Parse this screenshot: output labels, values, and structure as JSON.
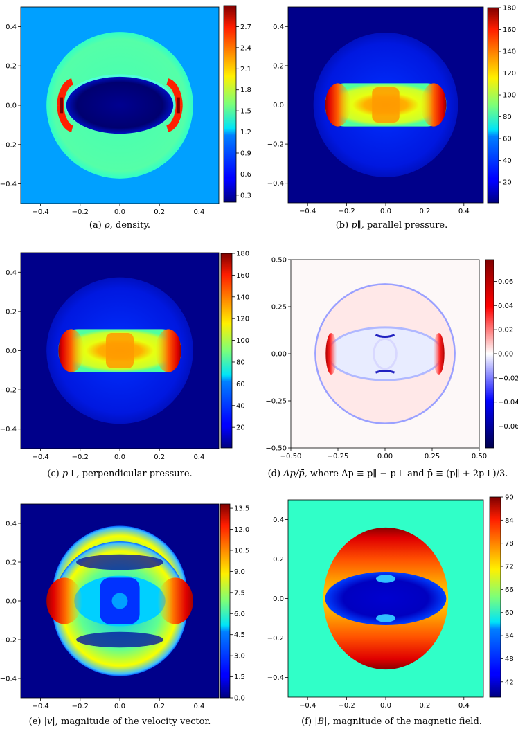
{
  "panels": [
    {
      "id": "a",
      "caption": {
        "label": "(a)",
        "symbol": "ρ,",
        "text": "density."
      },
      "chart_data": {
        "type": "heatmap",
        "x_ticks": [
          -0.4,
          -0.2,
          0.0,
          0.2,
          0.4
        ],
        "y_ticks": [
          0.4,
          0.2,
          0.0,
          -0.2,
          -0.4
        ],
        "x_tick_labels": [
          "−0.4",
          "−0.2",
          "0.0",
          "0.2",
          "0.4"
        ],
        "y_tick_labels": [
          "0.4",
          "0.2",
          "0.0",
          "−0.2",
          "−0.4"
        ],
        "xlim": [
          -0.5,
          0.5
        ],
        "ylim": [
          -0.5,
          0.5
        ],
        "colormap": "jet",
        "colorbar_ticks": [
          0.3,
          0.6,
          0.9,
          1.2,
          1.5,
          1.8,
          2.1,
          2.4,
          2.7
        ],
        "colorbar_tick_labels": [
          "0.3",
          "0.6",
          "0.9",
          "1.2",
          "1.5",
          "1.8",
          "2.1",
          "2.4",
          "2.7"
        ],
        "colorbar_range": [
          0.2,
          3.0
        ],
        "background_value": 1.0,
        "features": {
          "outer_shell_radius": 0.37,
          "inner_cavity_value": 0.25,
          "shell_value": 1.5,
          "peak_value": 3.0
        }
      }
    },
    {
      "id": "b",
      "caption": {
        "label": "(b)",
        "symbol": "p∥,",
        "text": "parallel pressure."
      },
      "chart_data": {
        "type": "heatmap",
        "x_ticks": [
          -0.4,
          -0.2,
          0.0,
          0.2,
          0.4
        ],
        "y_ticks": [
          0.4,
          0.2,
          0.0,
          -0.2,
          -0.4
        ],
        "x_tick_labels": [
          "−0.4",
          "−0.2",
          "0.0",
          "0.2",
          "0.4"
        ],
        "y_tick_labels": [
          "0.4",
          "0.2",
          "0.0",
          "−0.2",
          "−0.4"
        ],
        "xlim": [
          -0.5,
          0.5
        ],
        "ylim": [
          -0.5,
          0.5
        ],
        "colormap": "jet",
        "colorbar_ticks": [
          20,
          40,
          60,
          80,
          100,
          120,
          140,
          160,
          180
        ],
        "colorbar_tick_labels": [
          "20",
          "40",
          "60",
          "80",
          "100",
          "120",
          "140",
          "160",
          "180"
        ],
        "colorbar_range": [
          1,
          180
        ],
        "background_value": 1,
        "features": {
          "outer_shell_radius": 0.37,
          "core_value": 135,
          "edge_peak_value": 175
        }
      }
    },
    {
      "id": "c",
      "caption": {
        "label": "(c)",
        "symbol": "p⊥,",
        "text": "perpendicular pressure."
      },
      "chart_data": {
        "type": "heatmap",
        "x_ticks": [
          -0.4,
          -0.2,
          0.0,
          0.2,
          0.4
        ],
        "y_ticks": [
          0.4,
          0.2,
          0.0,
          -0.2,
          -0.4
        ],
        "x_tick_labels": [
          "−0.4",
          "−0.2",
          "0.0",
          "0.2",
          "0.4"
        ],
        "y_tick_labels": [
          "0.4",
          "0.2",
          "0.0",
          "−0.2",
          "−0.4"
        ],
        "xlim": [
          -0.5,
          0.5
        ],
        "ylim": [
          -0.5,
          0.5
        ],
        "colormap": "jet",
        "colorbar_ticks": [
          20,
          40,
          60,
          80,
          100,
          120,
          140,
          160,
          180
        ],
        "colorbar_tick_labels": [
          "20",
          "40",
          "60",
          "80",
          "100",
          "120",
          "140",
          "160",
          "180"
        ],
        "colorbar_range": [
          1,
          180
        ],
        "background_value": 1,
        "features": {
          "outer_shell_radius": 0.37,
          "core_value": 135,
          "edge_peak_value": 175
        }
      }
    },
    {
      "id": "d",
      "caption": {
        "label": "(d)",
        "symbol": "Δp/p̄,",
        "text": "where Δp ≡ p∥ − p⊥ and p̄ ≡ (p∥ + 2p⊥)/3."
      },
      "chart_data": {
        "type": "heatmap",
        "x_ticks": [
          -0.5,
          -0.25,
          0.0,
          0.25,
          0.5
        ],
        "y_ticks": [
          0.5,
          0.25,
          0.0,
          -0.25,
          -0.5
        ],
        "x_tick_labels": [
          "−0.50",
          "−0.25",
          "0.00",
          "0.25",
          "0.50"
        ],
        "y_tick_labels": [
          "0.50",
          "0.25",
          "0.00",
          "−0.25",
          "−0.50"
        ],
        "xlim": [
          -0.5,
          0.5
        ],
        "ylim": [
          -0.5,
          0.5
        ],
        "colormap": "seismic",
        "colorbar_ticks": [
          -0.06,
          -0.04,
          -0.02,
          0.0,
          0.02,
          0.04,
          0.06
        ],
        "colorbar_tick_labels": [
          "−0.06",
          "−0.04",
          "−0.02",
          "0.00",
          "0.02",
          "0.04",
          "0.06"
        ],
        "colorbar_range": [
          -0.078,
          0.078
        ],
        "background_value": 0.0,
        "features": {
          "outer_shell_radius": 0.37,
          "edge_peak_value": 0.075
        }
      }
    },
    {
      "id": "e",
      "caption": {
        "label": "(e)",
        "symbol": "|v|,",
        "text": "magnitude of the velocity vector."
      },
      "chart_data": {
        "type": "heatmap",
        "x_ticks": [
          -0.4,
          -0.2,
          0.0,
          0.2,
          0.4
        ],
        "y_ticks": [
          0.4,
          0.2,
          0.0,
          -0.2,
          -0.4
        ],
        "x_tick_labels": [
          "−0.4",
          "−0.2",
          "0.0",
          "0.2",
          "0.4"
        ],
        "y_tick_labels": [
          "0.4",
          "0.2",
          "0.0",
          "−0.2",
          "−0.4"
        ],
        "xlim": [
          -0.5,
          0.5
        ],
        "ylim": [
          -0.5,
          0.5
        ],
        "colormap": "jet",
        "colorbar_ticks": [
          0.0,
          1.5,
          3.0,
          4.5,
          6.0,
          7.5,
          9.0,
          10.5,
          12.0,
          13.5
        ],
        "colorbar_tick_labels": [
          "0.0",
          "1.5",
          "3.0",
          "4.5",
          "6.0",
          "7.5",
          "9.0",
          "10.5",
          "12.0",
          "13.5"
        ],
        "colorbar_range": [
          0.0,
          13.8
        ],
        "background_value": 0.0,
        "features": {
          "outer_shell_radius": 0.37,
          "shell_value": 8.5,
          "edge_peak_value": 13.5
        }
      }
    },
    {
      "id": "f",
      "caption": {
        "label": "(f)",
        "symbol": "|B|,",
        "text": "magnitude of the magnetic field."
      },
      "chart_data": {
        "type": "heatmap",
        "x_ticks": [
          -0.4,
          -0.2,
          0.0,
          0.2,
          0.4
        ],
        "y_ticks": [
          0.4,
          0.2,
          0.0,
          -0.2,
          -0.4
        ],
        "x_tick_labels": [
          "−0.4",
          "−0.2",
          "0.0",
          "0.2",
          "0.4"
        ],
        "y_tick_labels": [
          "0.4",
          "0.2",
          "0.0",
          "−0.2",
          "−0.4"
        ],
        "xlim": [
          -0.5,
          0.5
        ],
        "ylim": [
          -0.5,
          0.5
        ],
        "colormap": "jet",
        "colorbar_ticks": [
          42,
          48,
          54,
          60,
          66,
          72,
          78,
          84,
          90
        ],
        "colorbar_tick_labels": [
          "42",
          "48",
          "54",
          "60",
          "66",
          "72",
          "78",
          "84",
          "90"
        ],
        "colorbar_range": [
          38,
          90
        ],
        "background_value": 60,
        "features": {
          "outer_shell_radius": 0.37,
          "cavity_value": 42,
          "peak_value": 90
        }
      }
    }
  ]
}
